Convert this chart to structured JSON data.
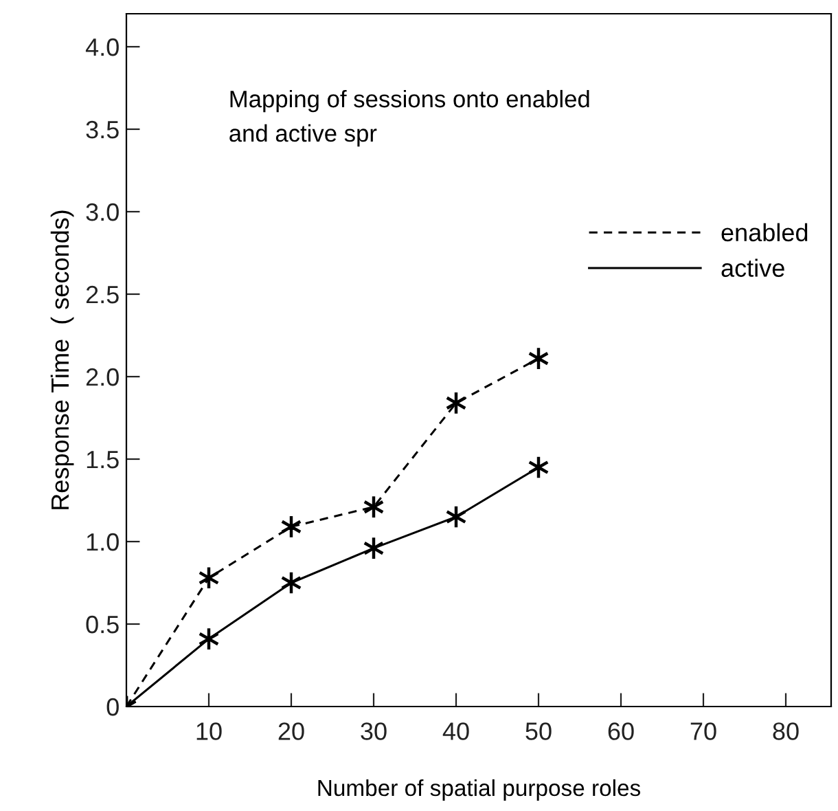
{
  "chart_data": {
    "type": "line",
    "xlabel": "Number of spatial purpose roles",
    "ylabel": "Response Time  ( seconds)",
    "annotations": [
      "Mapping of sessions onto enabled\nand active spr"
    ],
    "x": [
      0,
      10,
      20,
      30,
      40,
      50
    ],
    "series": [
      {
        "name": "enabled",
        "color": "#000000",
        "line_style": "dashed",
        "values": [
          0,
          0.78,
          1.09,
          1.21,
          1.84,
          2.11
        ]
      },
      {
        "name": "active",
        "color": "#000000",
        "line_style": "solid",
        "values": [
          0,
          0.41,
          0.75,
          0.96,
          1.15,
          1.45
        ]
      }
    ],
    "marker": "cross",
    "xlim": [
      0,
      85.5
    ],
    "ylim": [
      0,
      4.2
    ],
    "xticks": [
      10,
      20,
      30,
      40,
      50,
      60,
      70,
      80
    ],
    "yticks": [
      0,
      0.5,
      {
        "value": 1,
        "label": "1.0"
      },
      1.5,
      {
        "value": 2,
        "label": "2.0"
      },
      2.5,
      {
        "value": 3,
        "label": "3.0"
      },
      3.5,
      {
        "value": 4,
        "label": "4.0"
      }
    ],
    "grid": false,
    "legend": "top right"
  }
}
